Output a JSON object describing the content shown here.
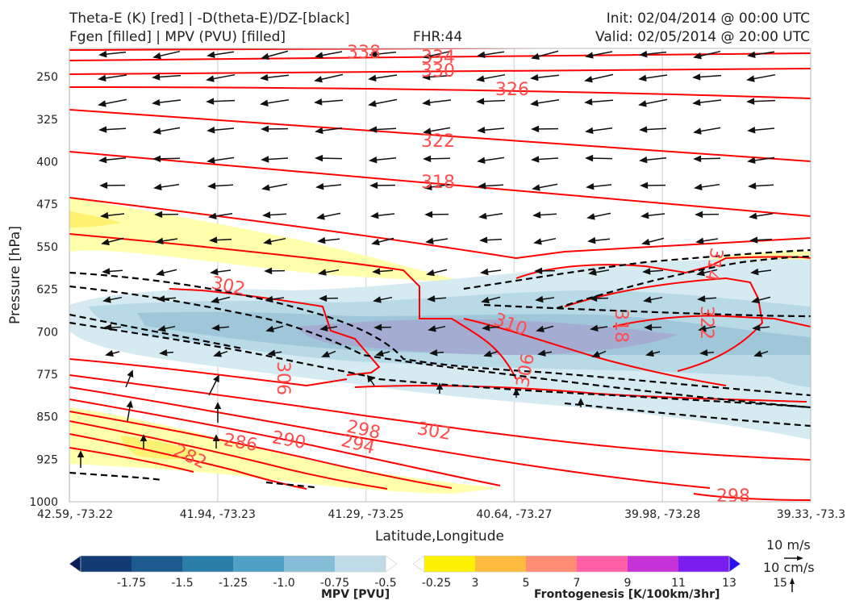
{
  "header": {
    "left_line1": "Theta-E (K) [red] | -D(theta-E)/DZ-[black]",
    "left_line2": "Fgen [filled] | MPV (PVU) [filled]",
    "center_line2": "FHR:44",
    "right_line1": "Init: 02/04/2014 @ 00:00 UTC",
    "right_line2": "Valid: 02/05/2014 @ 20:00 UTC"
  },
  "chart_data": {
    "type": "cross-section",
    "xlabel": "Latitude,Longitude",
    "ylabel": "Pressure [hPa]",
    "x_ticks": [
      "42.59, -73.22",
      "41.94, -73.23",
      "41.29, -73.25",
      "40.64, -73.27",
      "39.98, -73.28",
      "39.33, -73.3"
    ],
    "y_ticks": [
      250,
      325,
      400,
      475,
      550,
      625,
      700,
      775,
      850,
      925,
      1000
    ],
    "ylim": [
      1000,
      200
    ],
    "grid": true,
    "theta_e_labels": [
      "338",
      "334",
      "330",
      "326",
      "322",
      "318",
      "302",
      "310",
      "318",
      "322",
      "314",
      "306",
      "306",
      "298",
      "302",
      "286",
      "290",
      "294",
      "282",
      "298"
    ],
    "mpv_colorbar": {
      "label": "MPV [PVU]",
      "ticks": [
        "-1.75",
        "-1.5",
        "-1.25",
        "-1.0",
        "-0.75",
        "-0.5",
        "-0.25"
      ],
      "colors": [
        "#081d58",
        "#123b74",
        "#1d5a8d",
        "#2a7ea8",
        "#4fa0c4",
        "#86bdd6",
        "#bfdbe7",
        "#ffffff"
      ]
    },
    "fgen_colorbar": {
      "label": "Frontogenesis [K/100km/3hr]",
      "ticks": [
        "3",
        "5",
        "7",
        "9",
        "11",
        "13",
        "15"
      ],
      "colors": [
        "#ffffff",
        "#fff200",
        "#ffbb40",
        "#ff8c73",
        "#ff5fa5",
        "#c633d6",
        "#7a1ef0",
        "#2b10f5"
      ]
    },
    "wind_key": {
      "horizontal": "10 m/s",
      "vertical": "10 cm/s"
    }
  }
}
